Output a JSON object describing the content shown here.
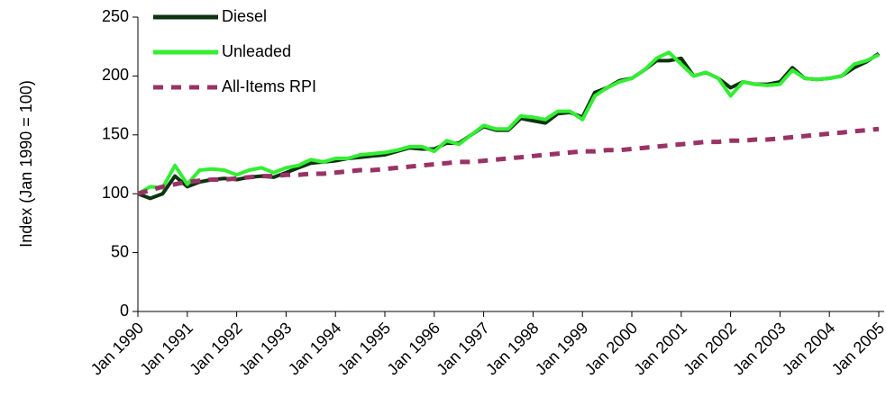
{
  "chart_data": {
    "type": "line",
    "y_label": "Index (Jan 1990 = 100)",
    "categories": [
      "Jan 1990",
      null,
      null,
      null,
      "Jan 1991",
      null,
      null,
      null,
      "Jan 1992",
      null,
      null,
      null,
      "Jan 1993",
      null,
      null,
      null,
      "Jan 1994",
      null,
      null,
      null,
      "Jan 1995",
      null,
      null,
      null,
      "Jan 1996",
      null,
      null,
      null,
      "Jan 1997",
      null,
      null,
      null,
      "Jan 1998",
      null,
      null,
      null,
      "Jan 1999",
      null,
      null,
      null,
      "Jan 2000",
      null,
      null,
      null,
      "Jan 2001",
      null,
      null,
      null,
      "Jan 2002",
      null,
      null,
      null,
      "Jan 2003",
      null,
      null,
      null,
      "Jan 2004",
      null,
      null,
      null,
      "Jan 2005"
    ],
    "series": [
      {
        "name": "Diesel",
        "color": "#0d3310",
        "dashed": false,
        "values": [
          100,
          96,
          100,
          115,
          106,
          110,
          112,
          113,
          112,
          114,
          115,
          114,
          118,
          122,
          126,
          127,
          128,
          130,
          131,
          132,
          133,
          136,
          139,
          138,
          138,
          143,
          143,
          150,
          157,
          154,
          154,
          164,
          162,
          160,
          168,
          169,
          165,
          186,
          190,
          196,
          198,
          205,
          213,
          213,
          215,
          200,
          203,
          198,
          190,
          195,
          193,
          193,
          195,
          207,
          198,
          197,
          198,
          200,
          207,
          212,
          219
        ]
      },
      {
        "name": "Unleaded",
        "color": "#33ee33",
        "dashed": false,
        "values": [
          100,
          106,
          105,
          124,
          108,
          120,
          121,
          120,
          116,
          120,
          122,
          118,
          122,
          124,
          129,
          127,
          130,
          130,
          133,
          134,
          135,
          137,
          140,
          140,
          136,
          145,
          142,
          150,
          158,
          155,
          155,
          166,
          165,
          163,
          170,
          170,
          163,
          183,
          190,
          195,
          198,
          205,
          215,
          220,
          210,
          200,
          203,
          198,
          183,
          195,
          193,
          192,
          193,
          205,
          198,
          197,
          198,
          200,
          210,
          213,
          218
        ]
      },
      {
        "name": "All-Items RPI",
        "color": "#993366",
        "dashed": true,
        "values": [
          100,
          103,
          106,
          108,
          110,
          111,
          112,
          112,
          113,
          114,
          115,
          115,
          116,
          116,
          117,
          117,
          118,
          119,
          120,
          120,
          121,
          122,
          123,
          124,
          125,
          126,
          127,
          127,
          128,
          129,
          130,
          131,
          132,
          133,
          134,
          135,
          136,
          136,
          137,
          137,
          138,
          139,
          140,
          141,
          142,
          143,
          144,
          144,
          145,
          145,
          146,
          146,
          147,
          148,
          149,
          150,
          151,
          152,
          153,
          154,
          155
        ]
      }
    ],
    "ylim": [
      0,
      250
    ],
    "yticks": [
      0,
      50,
      100,
      150,
      200,
      250
    ],
    "legend": "top-left",
    "grid": false
  }
}
